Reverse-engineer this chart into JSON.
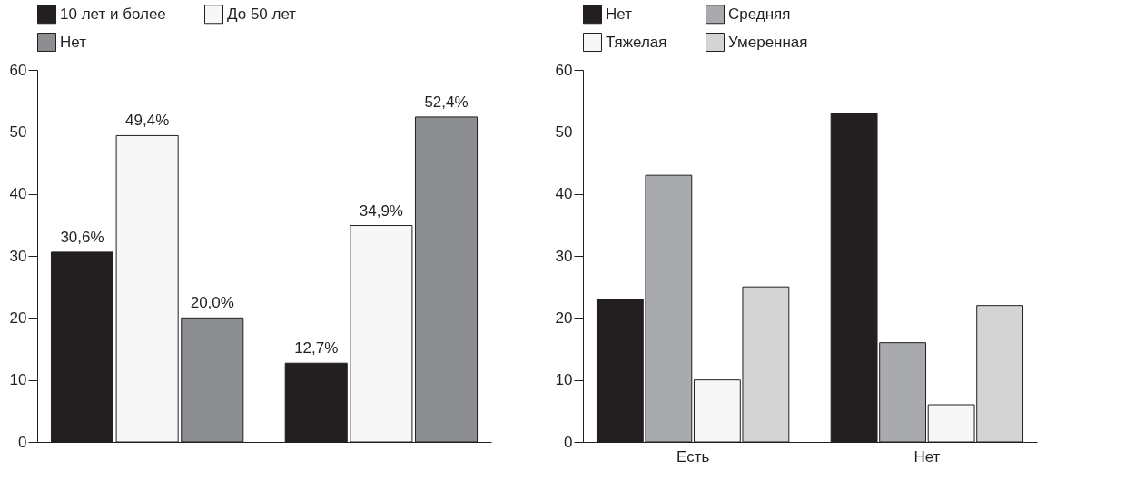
{
  "chart_data": [
    {
      "type": "bar",
      "categories": [
        null,
        null
      ],
      "ylim": [
        0,
        60
      ],
      "yticks": [
        0,
        10,
        20,
        30,
        40,
        50,
        60
      ],
      "legend": "top",
      "series": [
        {
          "name": "10 лет и более",
          "color": "#231f20",
          "values": [
            30.6,
            12.7
          ],
          "value_labels": [
            "30,6%",
            "12,7%"
          ]
        },
        {
          "name": "До 50 лет",
          "color": "#f7f7f7",
          "values": [
            49.4,
            34.9
          ],
          "value_labels": [
            "49,4%",
            "34,9%"
          ]
        },
        {
          "name": "Нет",
          "color": "#8d8e91",
          "values": [
            20.0,
            52.4
          ],
          "value_labels": [
            "20,0%",
            "52,4%"
          ]
        }
      ]
    },
    {
      "type": "bar",
      "categories": [
        "Есть",
        "Нет"
      ],
      "ylim": [
        0,
        60
      ],
      "yticks": [
        0,
        10,
        20,
        30,
        40,
        50,
        60
      ],
      "legend": "top",
      "series": [
        {
          "name": "Нет",
          "color": "#231f20",
          "values": [
            23,
            53
          ]
        },
        {
          "name": "Средняя",
          "color": "#a9aaad",
          "values": [
            43,
            16
          ]
        },
        {
          "name": "Тяжелая",
          "color": "#f7f7f7",
          "values": [
            10,
            6
          ]
        },
        {
          "name": "Умеренная",
          "color": "#d4d4d4",
          "values": [
            25,
            22
          ]
        }
      ]
    }
  ]
}
